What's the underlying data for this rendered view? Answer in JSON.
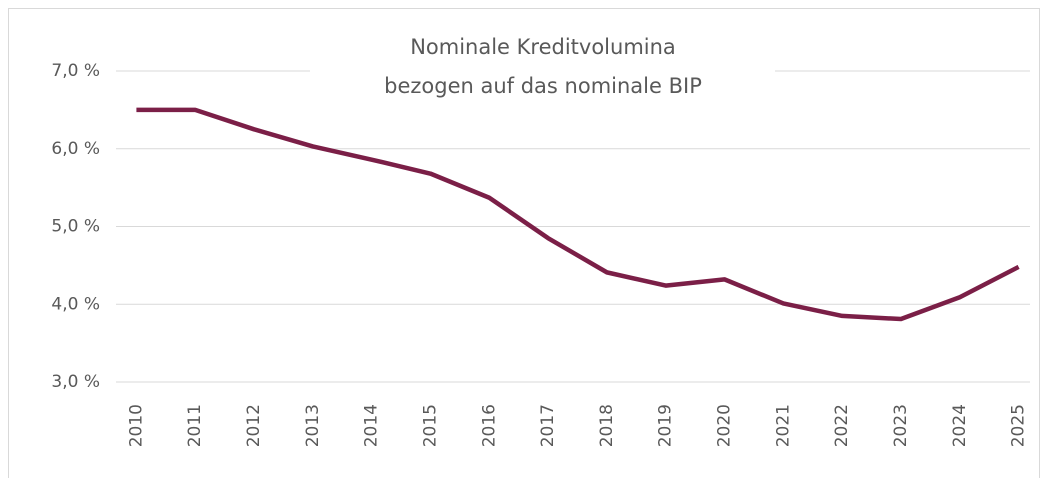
{
  "chart_data": {
    "type": "line",
    "title": [
      "Nominale Kreditvolumina",
      "bezogen auf das nominale BIP"
    ],
    "categories": [
      "2010",
      "2011",
      "2012",
      "2013",
      "2014",
      "2015",
      "2016",
      "2017",
      "2018",
      "2019",
      "2020",
      "2021",
      "2022",
      "2023",
      "2024",
      "2025"
    ],
    "series": [
      {
        "color": "#7b1f47",
        "values": [
          6.5,
          6.5,
          6.25,
          6.03,
          5.86,
          5.68,
          5.37,
          4.85,
          4.41,
          4.24,
          4.32,
          4.01,
          3.85,
          3.81,
          4.09,
          4.48
        ]
      }
    ],
    "ylim": [
      3,
      7
    ],
    "yticks": [
      {
        "value": 3,
        "label": "3,0 %"
      },
      {
        "value": 4,
        "label": "4,0 %"
      },
      {
        "value": 5,
        "label": "5,0 %"
      },
      {
        "value": 6,
        "label": "6,0 %"
      },
      {
        "value": 7,
        "label": "7,0 %"
      }
    ],
    "grid": true
  }
}
